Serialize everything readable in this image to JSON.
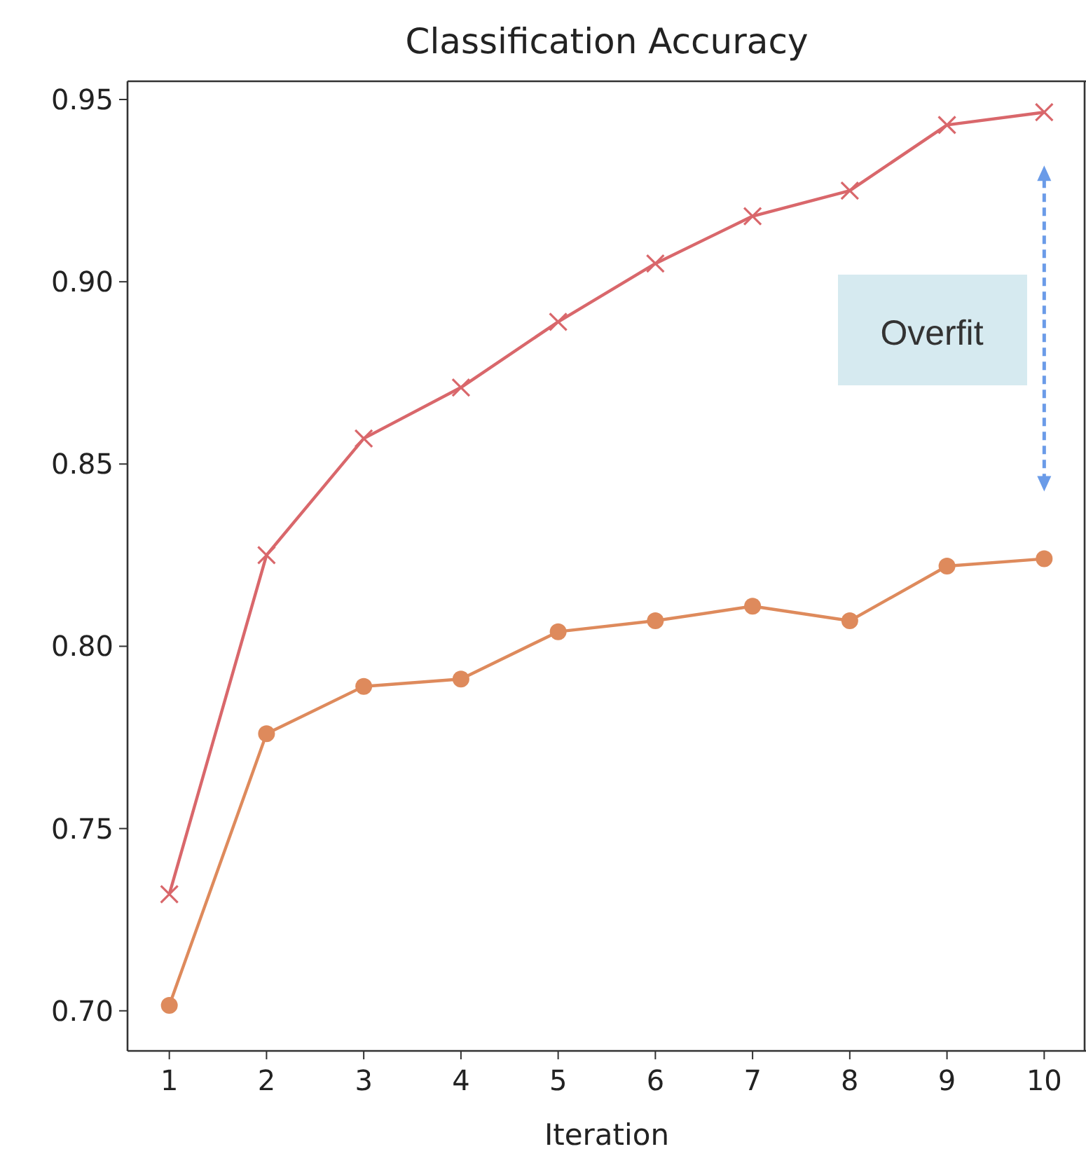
{
  "chart_data": {
    "type": "line",
    "title": "Classification Accuracy",
    "xlabel": "Iteration",
    "x": [
      1,
      2,
      3,
      4,
      5,
      6,
      7,
      8,
      9,
      10
    ],
    "series": [
      {
        "color": "#d9676b",
        "marker": "cross",
        "values": [
          0.732,
          0.825,
          0.857,
          0.871,
          0.889,
          0.905,
          0.918,
          0.925,
          0.943,
          0.9465
        ]
      },
      {
        "color": "#de8a5c",
        "marker": "circle",
        "values": [
          0.7015,
          0.776,
          0.789,
          0.791,
          0.804,
          0.807,
          0.811,
          0.807,
          0.822,
          0.824
        ]
      }
    ],
    "xlim": [
      0.57,
      10.43
    ],
    "ylim": [
      0.689,
      0.955
    ],
    "xticks": [
      1,
      2,
      3,
      4,
      5,
      6,
      7,
      8,
      9,
      10
    ],
    "yticks": [
      {
        "value": 0.7,
        "label": "0.70"
      },
      0.75,
      {
        "value": 0.8,
        "label": "0.80"
      },
      0.85,
      {
        "value": 0.9,
        "label": "0.90"
      },
      0.95
    ],
    "annotations": [
      "Overfit"
    ],
    "grid": false
  }
}
